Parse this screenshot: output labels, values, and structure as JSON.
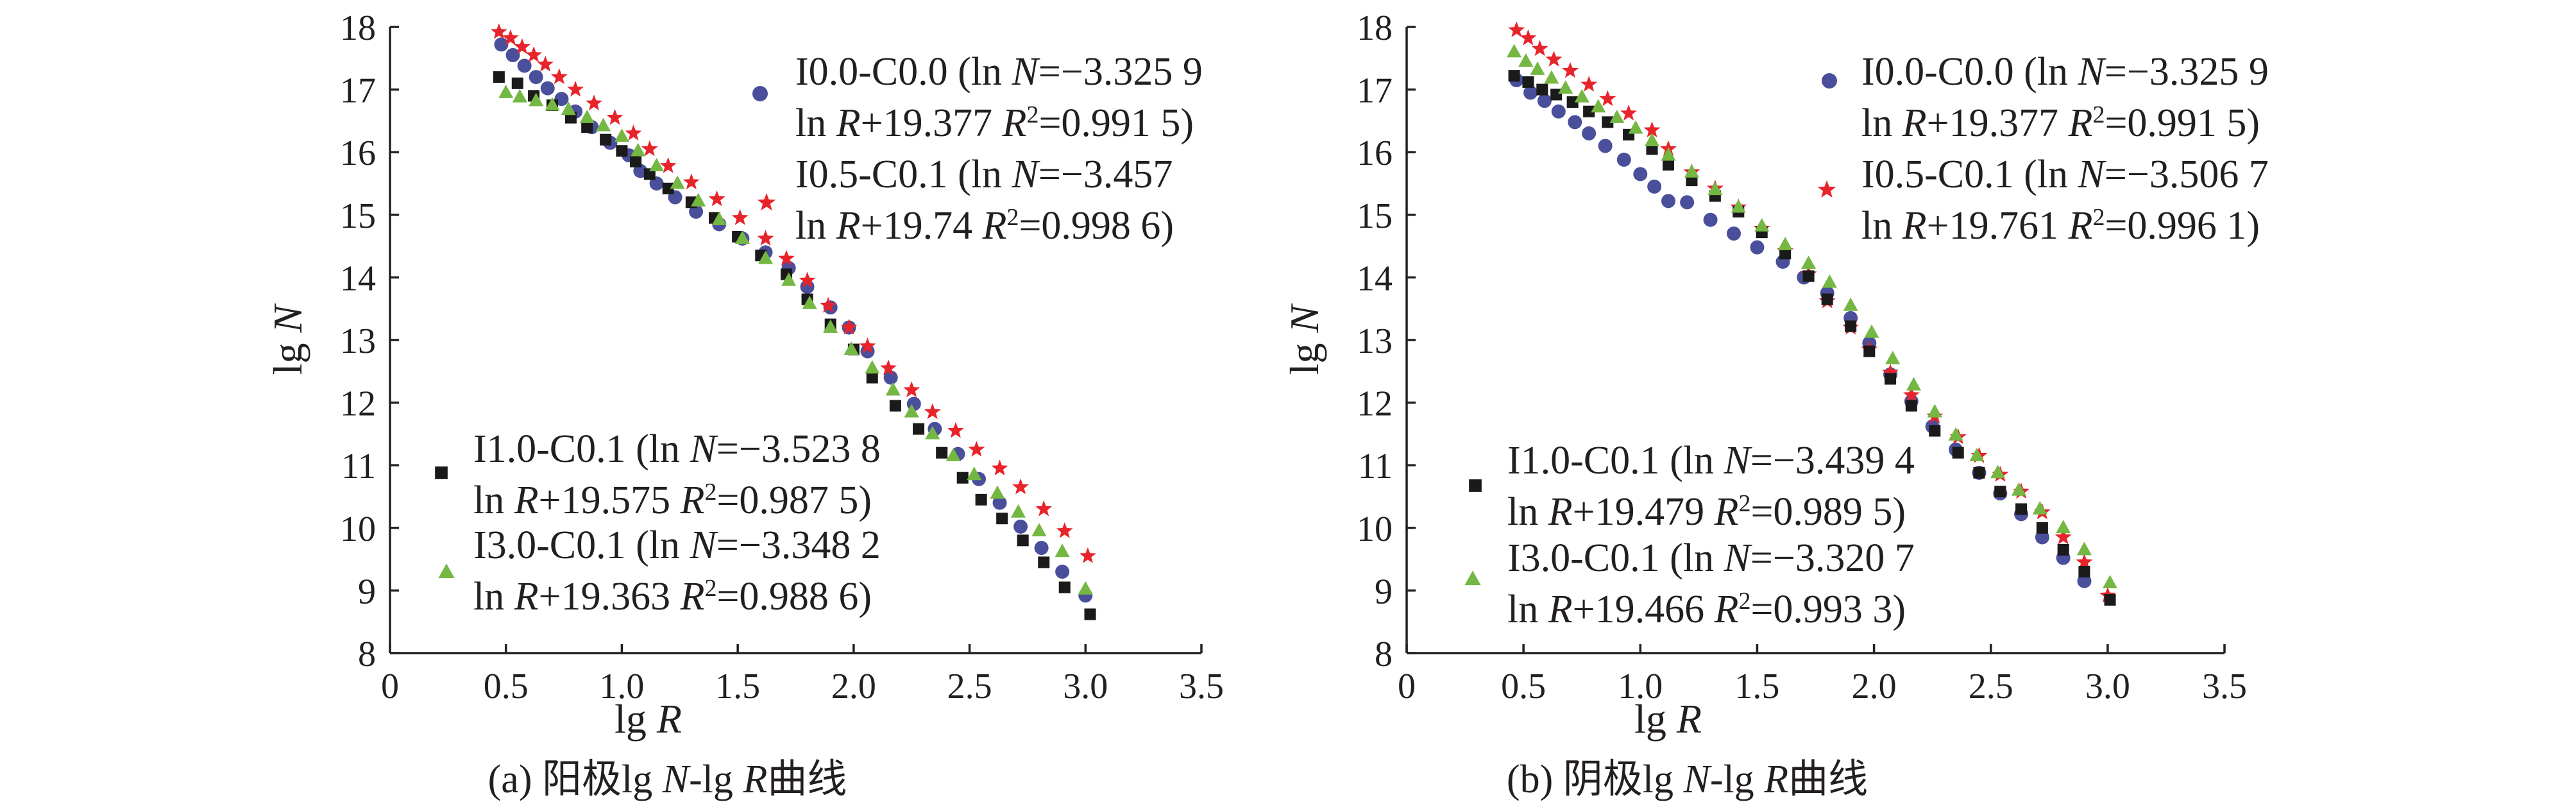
{
  "colors": {
    "I0.0-C0.0": "#4a4f9b",
    "I0.5-C0.1": "#e8242b",
    "I1.0-C0.1": "#1a1a1a",
    "I3.0-C0.1": "#74b743",
    "axis": "#231f20"
  },
  "chart_data": [
    {
      "type": "scatter",
      "caption": {
        "prefix": "(a) 阳极lg ",
        "n": "N",
        "mid": "-lg ",
        "r": "R",
        "suffix": "曲线"
      },
      "xlabel": {
        "base": "lg ",
        "var": "R"
      },
      "ylabel": {
        "base": "lg ",
        "var": "N"
      },
      "xlim": [
        0,
        3.5
      ],
      "ylim": [
        8,
        18
      ],
      "xticks": [
        "0",
        "0.5",
        "1.0",
        "1.5",
        "2.0",
        "2.5",
        "3.0",
        "3.5"
      ],
      "yticks": [
        "8",
        "9",
        "10",
        "11",
        "12",
        "13",
        "14",
        "15",
        "16",
        "17",
        "18"
      ],
      "legend": [
        {
          "series": "I0.0-C0.0",
          "marker": "circle",
          "line1": {
            "a": "I0.0-C0.0 (ln ",
            "b": "N",
            "c": "=−3.325 9"
          },
          "line2": {
            "a": "ln ",
            "b": "R",
            "c": "+19.377 ",
            "d": "R",
            "e": "2",
            "f": "=0.991 5)"
          }
        },
        {
          "series": "I0.5-C0.1",
          "marker": "star",
          "line1": {
            "a": "I0.5-C0.1 (ln ",
            "b": "N",
            "c": "=−3.457"
          },
          "line2": {
            "a": "ln ",
            "b": "R",
            "c": "+19.74 ",
            "d": "R",
            "e": "2",
            "f": "=0.998 6)"
          }
        },
        {
          "series": "I1.0-C0.1",
          "marker": "square",
          "line1": {
            "a": "I1.0-C0.1 (ln ",
            "b": "N",
            "c": "=−3.523 8"
          },
          "line2": {
            "a": "ln ",
            "b": "R",
            "c": "+19.575 ",
            "d": "R",
            "e": "2",
            "f": "=0.987 5)"
          }
        },
        {
          "series": "I3.0-C0.1",
          "marker": "triangle",
          "line1": {
            "a": "I3.0-C0.1 (ln ",
            "b": "N",
            "c": "=−3.348 2"
          },
          "line2": {
            "a": "ln ",
            "b": "R",
            "c": "+19.363 ",
            "d": "R",
            "e": "2",
            "f": "=0.988 6)"
          }
        }
      ],
      "series": [
        {
          "name": "I0.0-C0.0",
          "marker": "circle",
          "x": [
            0.48,
            0.53,
            0.58,
            0.63,
            0.68,
            0.74,
            0.8,
            0.87,
            0.95,
            1.03,
            1.08,
            1.15,
            1.23,
            1.32,
            1.42,
            1.52,
            1.62,
            1.72,
            1.8,
            1.9,
            1.98,
            2.06,
            2.16,
            2.26,
            2.35,
            2.45,
            2.54,
            2.63,
            2.72,
            2.81,
            2.9,
            3.0
          ],
          "y": [
            17.72,
            17.55,
            17.38,
            17.2,
            17.02,
            16.85,
            16.65,
            16.4,
            16.15,
            15.95,
            15.7,
            15.5,
            15.28,
            15.05,
            14.85,
            14.62,
            14.4,
            14.15,
            13.85,
            13.52,
            13.2,
            12.82,
            12.4,
            11.98,
            11.58,
            11.18,
            10.78,
            10.4,
            10.02,
            9.68,
            9.3,
            8.92
          ]
        },
        {
          "name": "I0.5-C0.1",
          "marker": "star",
          "x": [
            0.47,
            0.52,
            0.57,
            0.62,
            0.67,
            0.73,
            0.8,
            0.88,
            0.97,
            1.05,
            1.12,
            1.2,
            1.3,
            1.41,
            1.51,
            1.62,
            1.71,
            1.8,
            1.89,
            1.98,
            2.06,
            2.15,
            2.25,
            2.34,
            2.44,
            2.53,
            2.63,
            2.72,
            2.82,
            2.91,
            3.01
          ],
          "y": [
            17.92,
            17.82,
            17.68,
            17.55,
            17.4,
            17.2,
            17.0,
            16.78,
            16.55,
            16.3,
            16.05,
            15.78,
            15.52,
            15.25,
            14.95,
            14.62,
            14.3,
            13.95,
            13.55,
            13.2,
            12.9,
            12.55,
            12.2,
            11.85,
            11.55,
            11.25,
            10.95,
            10.65,
            10.3,
            9.95,
            9.55
          ]
        },
        {
          "name": "I1.0-C0.1",
          "marker": "square",
          "x": [
            0.47,
            0.55,
            0.62,
            0.7,
            0.78,
            0.85,
            0.93,
            1.0,
            1.06,
            1.12,
            1.2,
            1.3,
            1.4,
            1.5,
            1.6,
            1.71,
            1.8,
            1.9,
            2.0,
            2.08,
            2.18,
            2.28,
            2.38,
            2.47,
            2.55,
            2.64,
            2.73,
            2.82,
            2.91,
            3.02
          ],
          "y": [
            17.2,
            17.1,
            16.9,
            16.75,
            16.55,
            16.4,
            16.2,
            16.02,
            15.85,
            15.65,
            15.42,
            15.2,
            14.95,
            14.65,
            14.35,
            14.05,
            13.65,
            13.25,
            12.85,
            12.4,
            11.95,
            11.58,
            11.2,
            10.8,
            10.45,
            10.15,
            9.8,
            9.45,
            9.05,
            8.62
          ]
        },
        {
          "name": "I3.0-C0.1",
          "marker": "triangle",
          "x": [
            0.5,
            0.56,
            0.63,
            0.7,
            0.77,
            0.85,
            0.92,
            1.0,
            1.07,
            1.15,
            1.24,
            1.33,
            1.42,
            1.52,
            1.62,
            1.72,
            1.81,
            1.9,
            1.99,
            2.08,
            2.17,
            2.25,
            2.34,
            2.43,
            2.52,
            2.62,
            2.71,
            2.8,
            2.9,
            3.0
          ],
          "y": [
            16.95,
            16.88,
            16.82,
            16.75,
            16.68,
            16.55,
            16.42,
            16.25,
            16.02,
            15.78,
            15.5,
            15.22,
            14.92,
            14.62,
            14.3,
            13.95,
            13.58,
            13.2,
            12.85,
            12.55,
            12.2,
            11.85,
            11.5,
            11.15,
            10.85,
            10.55,
            10.25,
            9.95,
            9.62,
            9.02
          ]
        }
      ]
    },
    {
      "type": "scatter",
      "caption": {
        "prefix": "(b) 阴极lg ",
        "n": "N",
        "mid": "-lg ",
        "r": "R",
        "suffix": "曲线"
      },
      "xlabel": {
        "base": "lg ",
        "var": "R"
      },
      "ylabel": {
        "base": "lg ",
        "var": "N"
      },
      "xlim": [
        0,
        3.5
      ],
      "ylim": [
        8,
        18
      ],
      "xticks": [
        "0",
        "0.5",
        "1.0",
        "1.5",
        "2.0",
        "2.5",
        "3.0",
        "3.5"
      ],
      "yticks": [
        "8",
        "9",
        "10",
        "11",
        "12",
        "13",
        "14",
        "15",
        "16",
        "17",
        "18"
      ],
      "legend": [
        {
          "series": "I0.0-C0.0",
          "marker": "circle",
          "line1": {
            "a": "I0.0-C0.0 (ln ",
            "b": "N",
            "c": "=−3.325 9"
          },
          "line2": {
            "a": "ln ",
            "b": "R",
            "c": "+19.377 ",
            "d": "R",
            "e": "2",
            "f": "=0.991 5)"
          }
        },
        {
          "series": "I0.5-C0.1",
          "marker": "star",
          "line1": {
            "a": "I0.5-C0.1 (ln ",
            "b": "N",
            "c": "=−3.506 7"
          },
          "line2": {
            "a": "ln ",
            "b": "R",
            "c": "+19.761 ",
            "d": "R",
            "e": "2",
            "f": "=0.996 1)"
          }
        },
        {
          "series": "I1.0-C0.1",
          "marker": "square",
          "line1": {
            "a": "I1.0-C0.1 (ln ",
            "b": "N",
            "c": "=−3.439 4"
          },
          "line2": {
            "a": "ln ",
            "b": "R",
            "c": "+19.479 ",
            "d": "R",
            "e": "2",
            "f": "=0.989 5)"
          }
        },
        {
          "series": "I3.0-C0.1",
          "marker": "triangle",
          "line1": {
            "a": "I3.0-C0.1 (ln ",
            "b": "N",
            "c": "=−3.320 7"
          },
          "line2": {
            "a": "ln ",
            "b": "R",
            "c": "+19.466 ",
            "d": "R",
            "e": "2",
            "f": "=0.993 3)"
          }
        }
      ],
      "series": [
        {
          "name": "I0.0-C0.0",
          "marker": "circle",
          "x": [
            0.47,
            0.53,
            0.59,
            0.65,
            0.72,
            0.78,
            0.85,
            0.93,
            1.0,
            1.06,
            1.12,
            1.2,
            1.3,
            1.4,
            1.5,
            1.61,
            1.7,
            1.8,
            1.9,
            1.98,
            2.07,
            2.16,
            2.25,
            2.35,
            2.45,
            2.54,
            2.63,
            2.72,
            2.81,
            2.9
          ],
          "y": [
            17.15,
            16.95,
            16.82,
            16.65,
            16.48,
            16.3,
            16.1,
            15.88,
            15.65,
            15.45,
            15.22,
            15.2,
            14.92,
            14.7,
            14.48,
            14.25,
            14.0,
            13.75,
            13.35,
            12.95,
            12.45,
            12.02,
            11.62,
            11.25,
            10.88,
            10.55,
            10.22,
            9.85,
            9.52,
            9.15
          ]
        },
        {
          "name": "I0.5-C0.1",
          "marker": "star",
          "x": [
            0.47,
            0.52,
            0.57,
            0.63,
            0.7,
            0.78,
            0.86,
            0.95,
            1.05,
            1.12,
            1.22,
            1.32,
            1.42,
            1.52,
            1.62,
            1.72,
            1.8,
            1.9,
            1.98,
            2.07,
            2.16,
            2.26,
            2.36,
            2.45,
            2.54,
            2.63,
            2.72,
            2.81,
            2.9,
            3.0
          ],
          "y": [
            17.95,
            17.82,
            17.65,
            17.48,
            17.3,
            17.08,
            16.85,
            16.62,
            16.35,
            16.05,
            15.68,
            15.42,
            15.12,
            14.78,
            14.42,
            14.05,
            13.62,
            13.2,
            12.85,
            12.48,
            12.12,
            11.78,
            11.45,
            11.15,
            10.85,
            10.58,
            10.25,
            9.85,
            9.45,
            8.92
          ]
        },
        {
          "name": "I1.0-C0.1",
          "marker": "square",
          "x": [
            0.46,
            0.52,
            0.58,
            0.64,
            0.71,
            0.78,
            0.86,
            0.95,
            1.05,
            1.12,
            1.22,
            1.32,
            1.42,
            1.52,
            1.62,
            1.72,
            1.8,
            1.9,
            1.98,
            2.07,
            2.16,
            2.26,
            2.36,
            2.45,
            2.54,
            2.63,
            2.72,
            2.81,
            2.9,
            3.01
          ],
          "y": [
            17.22,
            17.12,
            17.0,
            16.92,
            16.8,
            16.65,
            16.48,
            16.28,
            16.05,
            15.8,
            15.55,
            15.3,
            15.05,
            14.72,
            14.38,
            14.02,
            13.65,
            13.22,
            12.82,
            12.38,
            11.95,
            11.55,
            11.2,
            10.88,
            10.58,
            10.3,
            10.0,
            9.65,
            9.3,
            8.85
          ]
        },
        {
          "name": "I3.0-C0.1",
          "marker": "triangle",
          "x": [
            0.46,
            0.51,
            0.56,
            0.62,
            0.68,
            0.75,
            0.82,
            0.9,
            0.98,
            1.05,
            1.12,
            1.22,
            1.32,
            1.42,
            1.52,
            1.62,
            1.72,
            1.81,
            1.9,
            1.99,
            2.08,
            2.17,
            2.26,
            2.35,
            2.44,
            2.53,
            2.62,
            2.71,
            2.81,
            2.9,
            3.01
          ],
          "y": [
            17.6,
            17.45,
            17.32,
            17.18,
            17.02,
            16.88,
            16.72,
            16.55,
            16.38,
            16.18,
            15.95,
            15.68,
            15.4,
            15.12,
            14.82,
            14.52,
            14.22,
            13.92,
            13.55,
            13.12,
            12.7,
            12.28,
            11.85,
            11.48,
            11.15,
            10.88,
            10.6,
            10.3,
            10.0,
            9.65,
            9.12
          ]
        }
      ]
    }
  ]
}
